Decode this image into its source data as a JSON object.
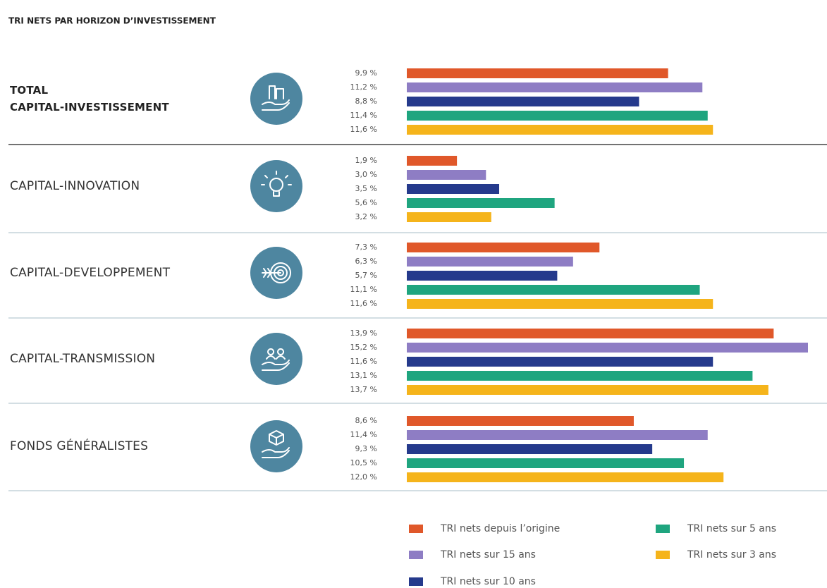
{
  "chart_data": {
    "type": "bar",
    "orientation": "horizontal",
    "title": "TRI NETS PAR HORIZON D’INVESTISSEMENT",
    "categories": [
      "TOTAL\nCAPITAL-INVESTISSEMENT",
      "CAPITAL-INNOVATION",
      "CAPITAL-DEVELOPPEMENT",
      "CAPITAL-TRANSMISSION",
      "FONDS GÉNÉRALISTES"
    ],
    "series": [
      {
        "name": "TRI nets depuis l’origine",
        "color": "#e0582a",
        "values": [
          9.9,
          1.9,
          7.3,
          13.9,
          8.6
        ],
        "value_labels": [
          "9,9 %",
          "1,9 %",
          "7,3 %",
          "13,9 %",
          "8,6 %"
        ]
      },
      {
        "name": "TRI nets sur 15 ans",
        "color": "#8e7dc4",
        "values": [
          11.2,
          3.0,
          6.3,
          15.2,
          11.4
        ],
        "value_labels": [
          "11,2 %",
          "3,0 %",
          "6,3 %",
          "15,2 %",
          "11,4 %"
        ]
      },
      {
        "name": "TRI nets sur 10 ans",
        "color": "#253a8c",
        "values": [
          8.8,
          3.5,
          5.7,
          11.6,
          9.3
        ],
        "value_labels": [
          "8,8 %",
          "3,5 %",
          "5,7 %",
          "11,6 %",
          "9,3 %"
        ]
      },
      {
        "name": "TRI nets sur 5 ans",
        "color": "#1fa57f",
        "values": [
          11.4,
          5.6,
          11.1,
          13.1,
          10.5
        ],
        "value_labels": [
          "11,4 %",
          "5,6 %",
          "11,1 %",
          "13,1 %",
          "10,5 %"
        ]
      },
      {
        "name": "TRI nets sur 3 ans",
        "color": "#f5b41b",
        "values": [
          11.6,
          3.2,
          11.6,
          13.7,
          12.0
        ],
        "value_labels": [
          "11,6 %",
          "3,2 %",
          "11,6 %",
          "13,7 %",
          "12,0 %"
        ]
      }
    ]
  }
}
